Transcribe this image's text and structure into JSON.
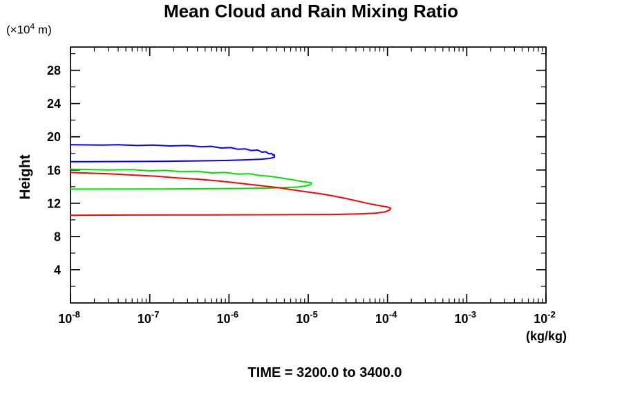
{
  "chart_data": {
    "type": "line",
    "title": "Mean Cloud and Rain Mixing Ratio",
    "caption": "TIME = 3200.0 to 3400.0",
    "grid": false,
    "legend": "none",
    "y_axis": {
      "title": "Height",
      "unit_prefix": "(×10",
      "unit_exp": "4",
      "unit_suffix": " m)",
      "lim": [
        0,
        30.8
      ],
      "major_ticks": [
        4,
        8,
        12,
        16,
        20,
        24,
        28
      ],
      "major_tick_labels": [
        "4",
        "8",
        "12",
        "16",
        "20",
        "24",
        "28"
      ],
      "minor_ticks": [
        2,
        6,
        10,
        14,
        18,
        22,
        26,
        30
      ]
    },
    "x_axis": {
      "unit_label": "(kg/kg)",
      "scale": "log",
      "lim_exponents": [
        -8,
        -2
      ],
      "major_ticks": [
        {
          "exponent": -8,
          "base": "10",
          "exp_label": "-8"
        },
        {
          "exponent": -7,
          "base": "10",
          "exp_label": "-7"
        },
        {
          "exponent": -6,
          "base": "10",
          "exp_label": "-6"
        },
        {
          "exponent": -5,
          "base": "10",
          "exp_label": "-5"
        },
        {
          "exponent": -4,
          "base": "10",
          "exp_label": "-4"
        },
        {
          "exponent": -3,
          "base": "10",
          "exp_label": "-3"
        },
        {
          "exponent": -2,
          "base": "10",
          "exp_label": "-2"
        }
      ],
      "minor_mantissas": [
        2,
        3,
        4,
        5,
        6,
        7,
        8,
        9
      ]
    },
    "axis_color": "#000000",
    "series": [
      {
        "name": "blue-profile",
        "color": "#0000ff",
        "peak_value": 3.7e-06,
        "peak_height": 17.7,
        "points": [
          [
            1e-08,
            19.05
          ],
          [
            2.5e-08,
            19.0
          ],
          [
            4e-08,
            19.05
          ],
          [
            7e-08,
            18.95
          ],
          [
            1.1e-07,
            19.0
          ],
          [
            1.8e-07,
            18.9
          ],
          [
            3e-07,
            18.95
          ],
          [
            4.5e-07,
            18.8
          ],
          [
            6e-07,
            18.85
          ],
          [
            8e-07,
            18.65
          ],
          [
            1.05e-06,
            18.7
          ],
          [
            1.3e-06,
            18.5
          ],
          [
            1.6e-06,
            18.55
          ],
          [
            1.9e-06,
            18.35
          ],
          [
            2.3e-06,
            18.4
          ],
          [
            2.6e-06,
            18.15
          ],
          [
            2.9e-06,
            18.2
          ],
          [
            3.2e-06,
            17.95
          ],
          [
            3.45e-06,
            18.0
          ],
          [
            3.6e-06,
            17.8
          ],
          [
            3.72e-06,
            17.85
          ],
          [
            3.75e-06,
            17.55
          ],
          [
            3.3e-06,
            17.4
          ],
          [
            2.5e-06,
            17.3
          ],
          [
            1.6e-06,
            17.22
          ],
          [
            9e-07,
            17.15
          ],
          [
            4e-07,
            17.1
          ],
          [
            1.5e-07,
            17.05
          ],
          [
            5e-08,
            17.02
          ],
          [
            1e-08,
            17.0
          ]
        ]
      },
      {
        "name": "green-profile",
        "color": "#00e000",
        "peak_value": 1.1e-05,
        "peak_height": 14.4,
        "points": [
          [
            1e-08,
            16.1
          ],
          [
            3e-08,
            16.0
          ],
          [
            6e-08,
            16.05
          ],
          [
            1e-07,
            15.9
          ],
          [
            1.6e-07,
            15.95
          ],
          [
            2.5e-07,
            15.8
          ],
          [
            4e-07,
            15.85
          ],
          [
            6e-07,
            15.65
          ],
          [
            9e-07,
            15.7
          ],
          [
            1.3e-06,
            15.5
          ],
          [
            1.8e-06,
            15.55
          ],
          [
            2.4e-06,
            15.35
          ],
          [
            3.2e-06,
            15.25
          ],
          [
            4.2e-06,
            15.1
          ],
          [
            5.2e-06,
            14.95
          ],
          [
            6.5e-06,
            14.8
          ],
          [
            8e-06,
            14.65
          ],
          [
            9.5e-06,
            14.55
          ],
          [
            1.1e-05,
            14.45
          ],
          [
            1.08e-05,
            14.25
          ],
          [
            9.5e-06,
            14.1
          ],
          [
            7.5e-06,
            13.95
          ],
          [
            5e-06,
            13.88
          ],
          [
            3e-06,
            13.82
          ],
          [
            1.5e-06,
            13.78
          ],
          [
            6e-07,
            13.75
          ],
          [
            1.5e-07,
            13.72
          ],
          [
            1e-08,
            13.7
          ]
        ]
      },
      {
        "name": "red-profile",
        "color": "#ff0000",
        "peak_value": 0.00011,
        "peak_height": 11.4,
        "points": [
          [
            1e-08,
            15.7
          ],
          [
            3e-08,
            15.55
          ],
          [
            6e-08,
            15.4
          ],
          [
            1.2e-07,
            15.25
          ],
          [
            2.2e-07,
            15.05
          ],
          [
            4e-07,
            14.9
          ],
          [
            7e-07,
            14.7
          ],
          [
            1.1e-06,
            14.5
          ],
          [
            1.7e-06,
            14.3
          ],
          [
            2.6e-06,
            14.1
          ],
          [
            4e-06,
            13.9
          ],
          [
            6e-06,
            13.65
          ],
          [
            9e-06,
            13.4
          ],
          [
            1.4e-05,
            13.15
          ],
          [
            2e-05,
            12.9
          ],
          [
            2.9e-05,
            12.6
          ],
          [
            4e-05,
            12.3
          ],
          [
            5.5e-05,
            12.0
          ],
          [
            7e-05,
            11.8
          ],
          [
            8.5e-05,
            11.65
          ],
          [
            0.0001,
            11.55
          ],
          [
            0.00011,
            11.4
          ],
          [
            0.000105,
            11.15
          ],
          [
            9.2e-05,
            10.95
          ],
          [
            7e-05,
            10.8
          ],
          [
            4.5e-05,
            10.72
          ],
          [
            2e-05,
            10.65
          ],
          [
            5e-06,
            10.62
          ],
          [
            5e-07,
            10.6
          ],
          [
            5e-08,
            10.58
          ],
          [
            1e-08,
            10.55
          ]
        ]
      }
    ]
  }
}
